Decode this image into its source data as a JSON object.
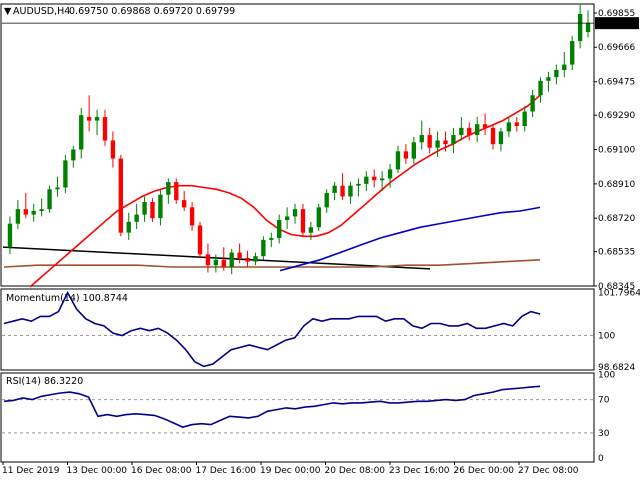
{
  "header": {
    "symbol_label": "AUDUSD,H4",
    "ohlc": "0.69750 0.69868 0.69720 0.69799"
  },
  "price_panel": {
    "y_ticks": [
      "0.69855",
      "0.69666",
      "0.69475",
      "0.69290",
      "0.69100",
      "0.68910",
      "0.68720",
      "0.68535",
      "0.68345"
    ],
    "current_price": "0.69799",
    "colors": {
      "bull": "#008000",
      "bear": "#ff0000",
      "sma_fast": "#ff0000",
      "sma_mid": "#0000cc",
      "sma_slow": "#a0522d",
      "trendline": "#000000",
      "price_marker_bg": "#000000"
    }
  },
  "momentum_panel": {
    "title": "Momentum(14) 100.8744",
    "y_ticks": [
      "101.7964",
      "100",
      "98.6824"
    ],
    "line_color": "#00008b"
  },
  "rsi_panel": {
    "title": "RSI(14) 86.3220",
    "y_ticks": [
      "100",
      "70",
      "30",
      "0"
    ],
    "line_color": "#00008b"
  },
  "x_axis": {
    "labels": [
      "11 Dec 2019",
      "13 Dec 00:00",
      "16 Dec 08:00",
      "17 Dec 16:00",
      "19 Dec 00:00",
      "20 Dec 08:00",
      "23 Dec 16:00",
      "26 Dec 00:00",
      "27 Dec 08:00"
    ]
  },
  "chart_data": {
    "type": "candlestick",
    "candles": [
      [
        0.6856,
        0.6873,
        0.6852,
        0.6869
      ],
      [
        0.6869,
        0.6882,
        0.6866,
        0.6877
      ],
      [
        0.6877,
        0.6886,
        0.6872,
        0.6874
      ],
      [
        0.6874,
        0.688,
        0.687,
        0.6876
      ],
      [
        0.6876,
        0.6883,
        0.6873,
        0.6877
      ],
      [
        0.6877,
        0.689,
        0.6875,
        0.6888
      ],
      [
        0.6888,
        0.6895,
        0.6884,
        0.6889
      ],
      [
        0.6889,
        0.6907,
        0.6886,
        0.6904
      ],
      [
        0.6904,
        0.6912,
        0.69,
        0.691
      ],
      [
        0.691,
        0.6933,
        0.6905,
        0.6929
      ],
      [
        0.6928,
        0.694,
        0.692,
        0.6926
      ],
      [
        0.6926,
        0.6932,
        0.6918,
        0.6928
      ],
      [
        0.6928,
        0.6932,
        0.6912,
        0.6915
      ],
      [
        0.6915,
        0.692,
        0.69,
        0.6905
      ],
      [
        0.6905,
        0.6907,
        0.6862,
        0.6864
      ],
      [
        0.6864,
        0.6875,
        0.686,
        0.687
      ],
      [
        0.687,
        0.688,
        0.6866,
        0.6874
      ],
      [
        0.6874,
        0.6884,
        0.687,
        0.6881
      ],
      [
        0.6881,
        0.6883,
        0.687,
        0.6872
      ],
      [
        0.6872,
        0.6888,
        0.6868,
        0.6885
      ],
      [
        0.6885,
        0.6894,
        0.688,
        0.6892
      ],
      [
        0.6892,
        0.6894,
        0.688,
        0.6882
      ],
      [
        0.6882,
        0.6887,
        0.6876,
        0.6878
      ],
      [
        0.6878,
        0.6881,
        0.6865,
        0.6868
      ],
      [
        0.6868,
        0.687,
        0.685,
        0.6852
      ],
      [
        0.6852,
        0.6858,
        0.6842,
        0.6846
      ],
      [
        0.6846,
        0.6852,
        0.6842,
        0.6849
      ],
      [
        0.6849,
        0.6856,
        0.6843,
        0.6845
      ],
      [
        0.6845,
        0.6855,
        0.6841,
        0.6853
      ],
      [
        0.6853,
        0.6858,
        0.6847,
        0.685
      ],
      [
        0.685,
        0.6854,
        0.6845,
        0.6848
      ],
      [
        0.6848,
        0.6853,
        0.6846,
        0.6851
      ],
      [
        0.6851,
        0.6862,
        0.6849,
        0.686
      ],
      [
        0.686,
        0.6864,
        0.6856,
        0.6861
      ],
      [
        0.6861,
        0.6874,
        0.6858,
        0.6871
      ],
      [
        0.6871,
        0.6878,
        0.6866,
        0.6873
      ],
      [
        0.6873,
        0.688,
        0.6869,
        0.6877
      ],
      [
        0.6877,
        0.688,
        0.6862,
        0.6864
      ],
      [
        0.6864,
        0.687,
        0.686,
        0.6867
      ],
      [
        0.6867,
        0.688,
        0.6865,
        0.6878
      ],
      [
        0.6878,
        0.6888,
        0.6875,
        0.6886
      ],
      [
        0.6886,
        0.6892,
        0.6882,
        0.689
      ],
      [
        0.689,
        0.6897,
        0.6882,
        0.6884
      ],
      [
        0.6884,
        0.6892,
        0.688,
        0.689
      ],
      [
        0.689,
        0.6894,
        0.6884,
        0.6891
      ],
      [
        0.6891,
        0.6898,
        0.6887,
        0.6895
      ],
      [
        0.6895,
        0.6899,
        0.6889,
        0.6893
      ],
      [
        0.6893,
        0.6898,
        0.6887,
        0.6894
      ],
      [
        0.6894,
        0.6902,
        0.6889,
        0.6899
      ],
      [
        0.6899,
        0.6912,
        0.6897,
        0.6909
      ],
      [
        0.6909,
        0.6913,
        0.6902,
        0.6905
      ],
      [
        0.6905,
        0.6917,
        0.6902,
        0.6914
      ],
      [
        0.6914,
        0.6926,
        0.691,
        0.6918
      ],
      [
        0.6918,
        0.6922,
        0.6908,
        0.6911
      ],
      [
        0.6911,
        0.692,
        0.6906,
        0.6915
      ],
      [
        0.6915,
        0.692,
        0.6909,
        0.6913
      ],
      [
        0.6913,
        0.6922,
        0.6908,
        0.6918
      ],
      [
        0.6918,
        0.6928,
        0.6915,
        0.6922
      ],
      [
        0.6922,
        0.6925,
        0.6915,
        0.6918
      ],
      [
        0.6918,
        0.6928,
        0.6914,
        0.6924
      ],
      [
        0.6924,
        0.693,
        0.6918,
        0.6922
      ],
      [
        0.6922,
        0.6924,
        0.691,
        0.6913
      ],
      [
        0.6913,
        0.6922,
        0.6909,
        0.692
      ],
      [
        0.692,
        0.6928,
        0.6917,
        0.6925
      ],
      [
        0.6925,
        0.6928,
        0.692,
        0.6923
      ],
      [
        0.6923,
        0.6934,
        0.692,
        0.6931
      ],
      [
        0.6931,
        0.6943,
        0.6928,
        0.694
      ],
      [
        0.694,
        0.695,
        0.6936,
        0.6948
      ],
      [
        0.6948,
        0.6953,
        0.6942,
        0.695
      ],
      [
        0.695,
        0.6957,
        0.6946,
        0.6954
      ],
      [
        0.6954,
        0.6964,
        0.695,
        0.6957
      ],
      [
        0.6957,
        0.6973,
        0.6954,
        0.697
      ],
      [
        0.697,
        0.699,
        0.6966,
        0.6985
      ],
      [
        0.6975,
        0.6987,
        0.6972,
        0.698
      ]
    ],
    "sma_fast": [
      0.6834,
      0.684,
      0.6846,
      0.6852,
      0.6858,
      0.6864,
      0.687,
      0.6876,
      0.688,
      0.6884,
      0.6887,
      0.6889,
      0.689,
      0.689,
      0.6889,
      0.6888,
      0.6886,
      0.6883,
      0.6878,
      0.6871,
      0.6866,
      0.6863,
      0.6862,
      0.6862,
      0.6864,
      0.6868,
      0.6874,
      0.688,
      0.6886,
      0.6892,
      0.6897,
      0.6902,
      0.6906,
      0.691,
      0.6913,
      0.6917,
      0.692,
      0.6923,
      0.6926,
      0.693,
      0.6934,
      0.694
    ],
    "sma_mid": [
      0.6843,
      0.6846,
      0.6849,
      0.6853,
      0.6857,
      0.6861,
      0.6864,
      0.6867,
      0.6869,
      0.6871,
      0.6873,
      0.6875,
      0.6876,
      0.6878
    ],
    "sma_slow": [
      0.6845,
      0.6846,
      0.6846,
      0.6846,
      0.6846,
      0.6845,
      0.6845,
      0.6845,
      0.6845,
      0.6845,
      0.6845,
      0.6845,
      0.6846,
      0.6846,
      0.6847,
      0.6848,
      0.6849
    ],
    "trendline": [
      [
        0.6856
      ],
      [
        0.6844
      ]
    ],
    "momentum": [
      100.5,
      100.6,
      100.7,
      100.6,
      100.8,
      100.8,
      101.0,
      101.8,
      101.1,
      100.7,
      100.5,
      100.4,
      100.1,
      100.0,
      100.2,
      100.3,
      100.2,
      100.3,
      100.1,
      99.8,
      99.4,
      98.9,
      98.7,
      98.8,
      99.1,
      99.4,
      99.5,
      99.6,
      99.5,
      99.4,
      99.6,
      99.8,
      99.9,
      100.4,
      100.7,
      100.6,
      100.7,
      100.7,
      100.7,
      100.8,
      100.8,
      100.8,
      100.6,
      100.7,
      100.7,
      100.4,
      100.3,
      100.5,
      100.5,
      100.4,
      100.4,
      100.5,
      100.3,
      100.3,
      100.4,
      100.5,
      100.4,
      100.8,
      101.0,
      100.9
    ],
    "rsi": [
      68,
      69,
      72,
      70,
      74,
      76,
      78,
      79,
      77,
      73,
      50,
      52,
      50,
      52,
      53,
      52,
      51,
      47,
      42,
      37,
      40,
      41,
      40,
      45,
      50,
      49,
      48,
      50,
      56,
      58,
      60,
      59,
      61,
      62,
      64,
      66,
      65,
      66,
      66,
      67,
      68,
      66,
      66,
      67,
      68,
      68,
      69,
      70,
      69,
      70,
      75,
      77,
      79,
      82,
      83,
      84,
      85,
      86
    ]
  }
}
